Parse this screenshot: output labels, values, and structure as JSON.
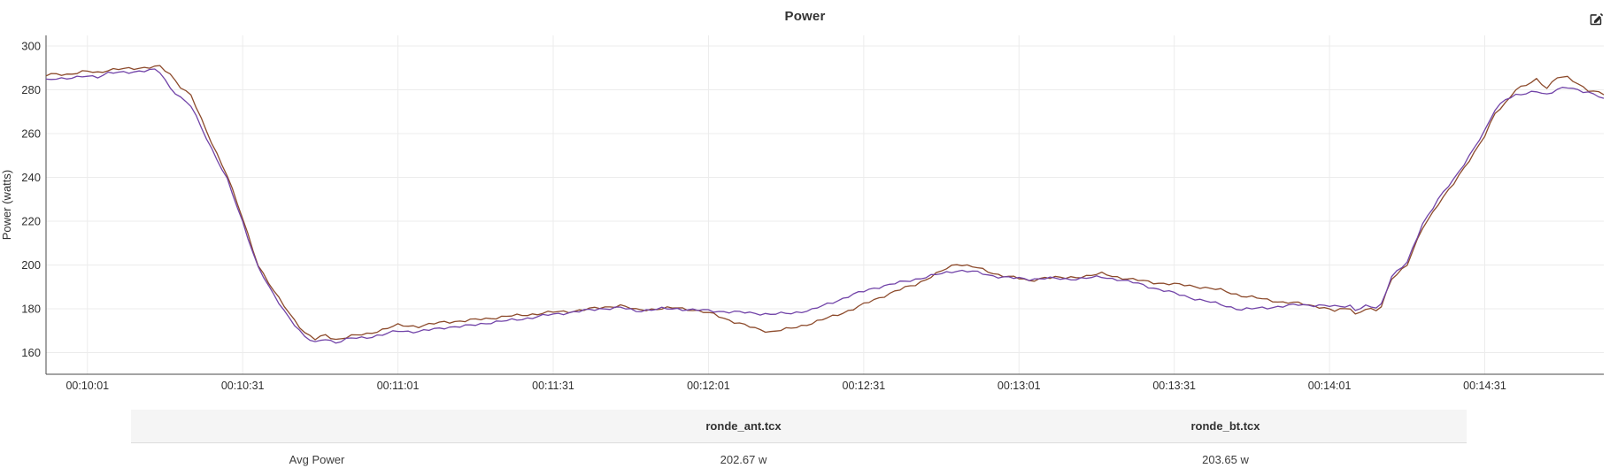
{
  "header": {
    "title": "Power"
  },
  "icons": {
    "edit_chart": "pen-square-icon"
  },
  "chart_data": {
    "type": "line",
    "title": "Power",
    "xlabel": "",
    "ylabel": "Power (watts)",
    "ylim": [
      160,
      300
    ],
    "y_ticks": [
      300,
      280,
      260,
      240,
      220,
      200,
      180,
      160
    ],
    "x_domain_seconds": [
      593,
      894
    ],
    "x_ticks": [
      {
        "s": 601,
        "label": "00:10:01"
      },
      {
        "s": 631,
        "label": "00:10:31"
      },
      {
        "s": 661,
        "label": "00:11:01"
      },
      {
        "s": 691,
        "label": "00:11:31"
      },
      {
        "s": 721,
        "label": "00:12:01"
      },
      {
        "s": 751,
        "label": "00:12:31"
      },
      {
        "s": 781,
        "label": "00:13:01"
      },
      {
        "s": 811,
        "label": "00:13:31"
      },
      {
        "s": 841,
        "label": "00:14:01"
      },
      {
        "s": 871,
        "label": "00:14:31"
      }
    ],
    "grid": true,
    "legend_position": "none",
    "series": [
      {
        "name": "ronde_ant.tcx",
        "color": "#8C4A2B",
        "points": [
          [
            593,
            286.5
          ],
          [
            595,
            287.5
          ],
          [
            597,
            287
          ],
          [
            599,
            287.5
          ],
          [
            601,
            288.5
          ],
          [
            603,
            288
          ],
          [
            605,
            289
          ],
          [
            608,
            289.5
          ],
          [
            611,
            290
          ],
          [
            614,
            290.5
          ],
          [
            615,
            290.5
          ],
          [
            617,
            287
          ],
          [
            619,
            281.5
          ],
          [
            621,
            277.5
          ],
          [
            624,
            261
          ],
          [
            626,
            251
          ],
          [
            628,
            241
          ],
          [
            631,
            221
          ],
          [
            634,
            200
          ],
          [
            637,
            188
          ],
          [
            640,
            178
          ],
          [
            643,
            169
          ],
          [
            645,
            166
          ],
          [
            647,
            168
          ],
          [
            649,
            166
          ],
          [
            652,
            167.5
          ],
          [
            655,
            168.5
          ],
          [
            658,
            170.5
          ],
          [
            661,
            172.5
          ],
          [
            665,
            172
          ],
          [
            670,
            174
          ],
          [
            674,
            174.5
          ],
          [
            678,
            175.5
          ],
          [
            682,
            176.5
          ],
          [
            687,
            177.5
          ],
          [
            691,
            178.5
          ],
          [
            695,
            179
          ],
          [
            700,
            180.5
          ],
          [
            704,
            181.5
          ],
          [
            707,
            179.5
          ],
          [
            712,
            180
          ],
          [
            715,
            180.5
          ],
          [
            718,
            179.5
          ],
          [
            722,
            177.5
          ],
          [
            726,
            174
          ],
          [
            730,
            171
          ],
          [
            733,
            169.5
          ],
          [
            737,
            171
          ],
          [
            741,
            173.5
          ],
          [
            745,
            176.5
          ],
          [
            749,
            180
          ],
          [
            753,
            184
          ],
          [
            757,
            188
          ],
          [
            761,
            191
          ],
          [
            765,
            196
          ],
          [
            769,
            200.5
          ],
          [
            772,
            199.5
          ],
          [
            776,
            196
          ],
          [
            780,
            194.5
          ],
          [
            783,
            192.5
          ],
          [
            786,
            194.5
          ],
          [
            790,
            194
          ],
          [
            794,
            195
          ],
          [
            797,
            196
          ],
          [
            800,
            194.5
          ],
          [
            804,
            193
          ],
          [
            807,
            192
          ],
          [
            812,
            191
          ],
          [
            816,
            190
          ],
          [
            820,
            188.5
          ],
          [
            824,
            186
          ],
          [
            828,
            184.5
          ],
          [
            832,
            183
          ],
          [
            835,
            182.5
          ],
          [
            839,
            181
          ],
          [
            842,
            179
          ],
          [
            845,
            180.5
          ],
          [
            846,
            177.5
          ],
          [
            848,
            180
          ],
          [
            850,
            179
          ],
          [
            851,
            181
          ],
          [
            853,
            194
          ],
          [
            856,
            200
          ],
          [
            859,
            217
          ],
          [
            862,
            228
          ],
          [
            865,
            237
          ],
          [
            868,
            248
          ],
          [
            871,
            259
          ],
          [
            873,
            269
          ],
          [
            875,
            274
          ],
          [
            877,
            280.5
          ],
          [
            879,
            282
          ],
          [
            881,
            284.5
          ],
          [
            883,
            281
          ],
          [
            885,
            286
          ],
          [
            887,
            285.5
          ],
          [
            889,
            282.5
          ],
          [
            891,
            280
          ],
          [
            893,
            279
          ],
          [
            894,
            278
          ]
        ]
      },
      {
        "name": "ronde_bt.tcx",
        "color": "#7143A8",
        "points": [
          [
            593,
            284.5
          ],
          [
            595,
            285.5
          ],
          [
            597,
            285
          ],
          [
            599,
            285.5
          ],
          [
            601,
            286.5
          ],
          [
            603,
            286
          ],
          [
            605,
            287.5
          ],
          [
            608,
            288
          ],
          [
            611,
            288.5
          ],
          [
            614,
            289
          ],
          [
            615,
            288
          ],
          [
            617,
            281
          ],
          [
            619,
            276.5
          ],
          [
            621,
            272.5
          ],
          [
            624,
            258
          ],
          [
            626,
            248.5
          ],
          [
            628,
            239
          ],
          [
            631,
            219.5
          ],
          [
            634,
            199
          ],
          [
            637,
            186
          ],
          [
            640,
            176
          ],
          [
            643,
            167
          ],
          [
            645,
            164.5
          ],
          [
            647,
            166.5
          ],
          [
            649,
            164.5
          ],
          [
            652,
            166.5
          ],
          [
            655,
            167
          ],
          [
            658,
            168
          ],
          [
            661,
            170
          ],
          [
            665,
            169.5
          ],
          [
            670,
            171.5
          ],
          [
            674,
            172
          ],
          [
            678,
            173.5
          ],
          [
            682,
            174.5
          ],
          [
            687,
            176
          ],
          [
            691,
            177.5
          ],
          [
            695,
            178.5
          ],
          [
            700,
            180
          ],
          [
            704,
            180.5
          ],
          [
            707,
            179
          ],
          [
            712,
            180
          ],
          [
            715,
            180
          ],
          [
            718,
            179.5
          ],
          [
            722,
            179
          ],
          [
            726,
            178.5
          ],
          [
            730,
            178
          ],
          [
            733,
            177.5
          ],
          [
            737,
            178
          ],
          [
            741,
            179.5
          ],
          [
            745,
            183
          ],
          [
            749,
            186.5
          ],
          [
            753,
            189.5
          ],
          [
            757,
            191.5
          ],
          [
            761,
            193.5
          ],
          [
            765,
            195.5
          ],
          [
            769,
            197.5
          ],
          [
            772,
            197
          ],
          [
            776,
            195
          ],
          [
            780,
            194
          ],
          [
            783,
            193.5
          ],
          [
            786,
            194
          ],
          [
            790,
            193.5
          ],
          [
            794,
            194
          ],
          [
            797,
            194.5
          ],
          [
            800,
            193.5
          ],
          [
            804,
            191.5
          ],
          [
            807,
            189.5
          ],
          [
            812,
            186.5
          ],
          [
            816,
            184
          ],
          [
            820,
            182
          ],
          [
            824,
            179.5
          ],
          [
            828,
            180.5
          ],
          [
            832,
            181
          ],
          [
            835,
            182
          ],
          [
            839,
            181.5
          ],
          [
            842,
            181
          ],
          [
            845,
            181.5
          ],
          [
            846,
            179.5
          ],
          [
            848,
            181
          ],
          [
            850,
            180.5
          ],
          [
            851,
            182
          ],
          [
            853,
            195
          ],
          [
            856,
            201
          ],
          [
            859,
            219
          ],
          [
            862,
            230
          ],
          [
            865,
            239
          ],
          [
            868,
            250
          ],
          [
            871,
            261
          ],
          [
            873,
            271
          ],
          [
            875,
            276
          ],
          [
            877,
            277.5
          ],
          [
            879,
            278
          ],
          [
            881,
            279.5
          ],
          [
            883,
            278
          ],
          [
            885,
            280
          ],
          [
            887,
            281
          ],
          [
            889,
            280
          ],
          [
            891,
            279
          ],
          [
            893,
            277
          ],
          [
            894,
            275.5
          ]
        ]
      }
    ],
    "style": {
      "grid_color": "#ececec",
      "axis_color": "#4a4a4a",
      "text_color": "#2f2f2f"
    }
  },
  "summary_table": {
    "columns": [
      "",
      "ronde_ant.tcx",
      "ronde_bt.tcx"
    ],
    "rows": [
      {
        "label": "Avg Power",
        "values": [
          "202.67 w",
          "203.65 w"
        ]
      }
    ]
  }
}
